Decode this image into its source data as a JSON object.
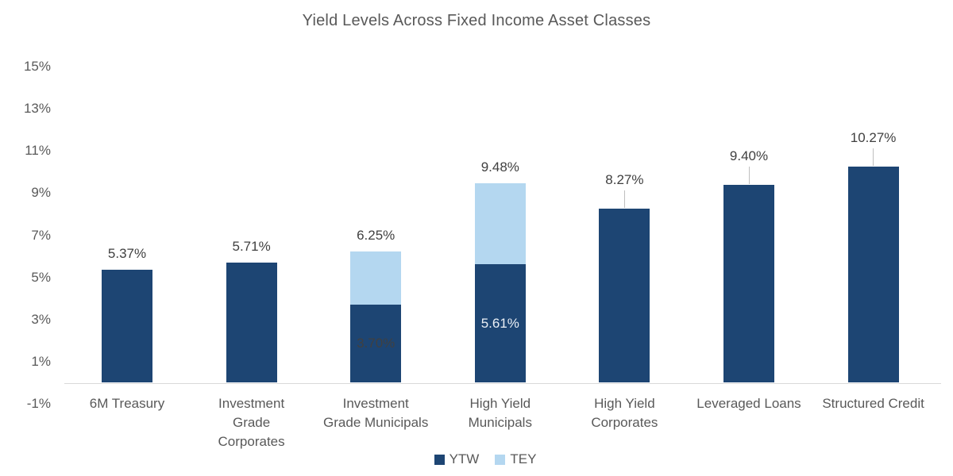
{
  "title": "Yield Levels Across Fixed Income Asset Classes",
  "colors": {
    "ytw_bar": "#1D4573",
    "tey_bar": "#B4D7F0",
    "title_text": "#595959",
    "axis_text": "#595959",
    "data_label_text": "#404040",
    "inside_label_dark": "#404040",
    "inside_label_light": "#EBF0F6",
    "baseline": "#D9D9D9",
    "leader_line": "#BFBFBF"
  },
  "legend": {
    "items": [
      {
        "label": "YTW",
        "series": "ytw"
      },
      {
        "label": "TEY",
        "series": "tey"
      }
    ]
  },
  "y_axis": {
    "ticks": [
      {
        "label": "15%",
        "value": 15
      },
      {
        "label": "13%",
        "value": 13
      },
      {
        "label": "11%",
        "value": 11
      },
      {
        "label": "9%",
        "value": 9
      },
      {
        "label": "7%",
        "value": 7
      },
      {
        "label": "5%",
        "value": 5
      },
      {
        "label": "3%",
        "value": 3
      },
      {
        "label": "1%",
        "value": 1
      },
      {
        "label": "-1%",
        "value": -1
      }
    ]
  },
  "chart_data": {
    "type": "bar",
    "stacked": true,
    "title": "Yield Levels Across Fixed Income Asset Classes",
    "xlabel": "",
    "ylabel": "",
    "ylim": [
      -1,
      15
    ],
    "y_tick_labels": [
      "-1%",
      "1%",
      "3%",
      "5%",
      "7%",
      "9%",
      "11%",
      "13%",
      "15%"
    ],
    "grid": false,
    "legend_position": "bottom-center",
    "categories": [
      "6M Treasury",
      "Investment Grade Corporates",
      "Investment Grade Municipals",
      "High Yield Municipals",
      "High Yield Corporates",
      "Leveraged Loans",
      "Structured Credit"
    ],
    "series": [
      {
        "name": "YTW",
        "color": "#1D4573",
        "values": [
          5.37,
          5.71,
          3.7,
          5.61,
          8.27,
          9.4,
          10.27
        ]
      },
      {
        "name": "TEY",
        "color": "#B4D7F0",
        "totals_including_ytw": [
          null,
          null,
          6.25,
          9.48,
          null,
          null,
          null
        ]
      }
    ],
    "points": [
      {
        "category": "6M Treasury",
        "category_lines": [
          "6M Treasury"
        ],
        "ytw": 5.37,
        "label": "5.37%",
        "leader": false
      },
      {
        "category": "Investment Grade Corporates",
        "category_lines": [
          "Investment",
          "Grade",
          "Corporates"
        ],
        "ytw": 5.71,
        "label": "5.71%",
        "leader": false
      },
      {
        "category": "Investment Grade Municipals",
        "category_lines": [
          "Investment",
          "Grade Municipals"
        ],
        "ytw": 3.7,
        "ytw_label": "3.70%",
        "ytw_label_color": "#404040",
        "tey": 6.25,
        "label": "6.25%",
        "leader": false
      },
      {
        "category": "High Yield Municipals",
        "category_lines": [
          "High Yield",
          "Municipals"
        ],
        "ytw": 5.61,
        "ytw_label": "5.61%",
        "ytw_label_color": "#EBF0F6",
        "tey": 9.48,
        "label": "9.48%",
        "leader": false
      },
      {
        "category": "High Yield Corporates",
        "category_lines": [
          "High Yield",
          "Corporates"
        ],
        "ytw": 8.27,
        "label": "8.27%",
        "leader": true
      },
      {
        "category": "Leveraged Loans",
        "category_lines": [
          "Leveraged Loans"
        ],
        "ytw": 9.4,
        "label": "9.40%",
        "leader": true
      },
      {
        "category": "Structured Credit",
        "category_lines": [
          "Structured Credit"
        ],
        "ytw": 10.27,
        "label": "10.27%",
        "leader": true
      }
    ]
  }
}
